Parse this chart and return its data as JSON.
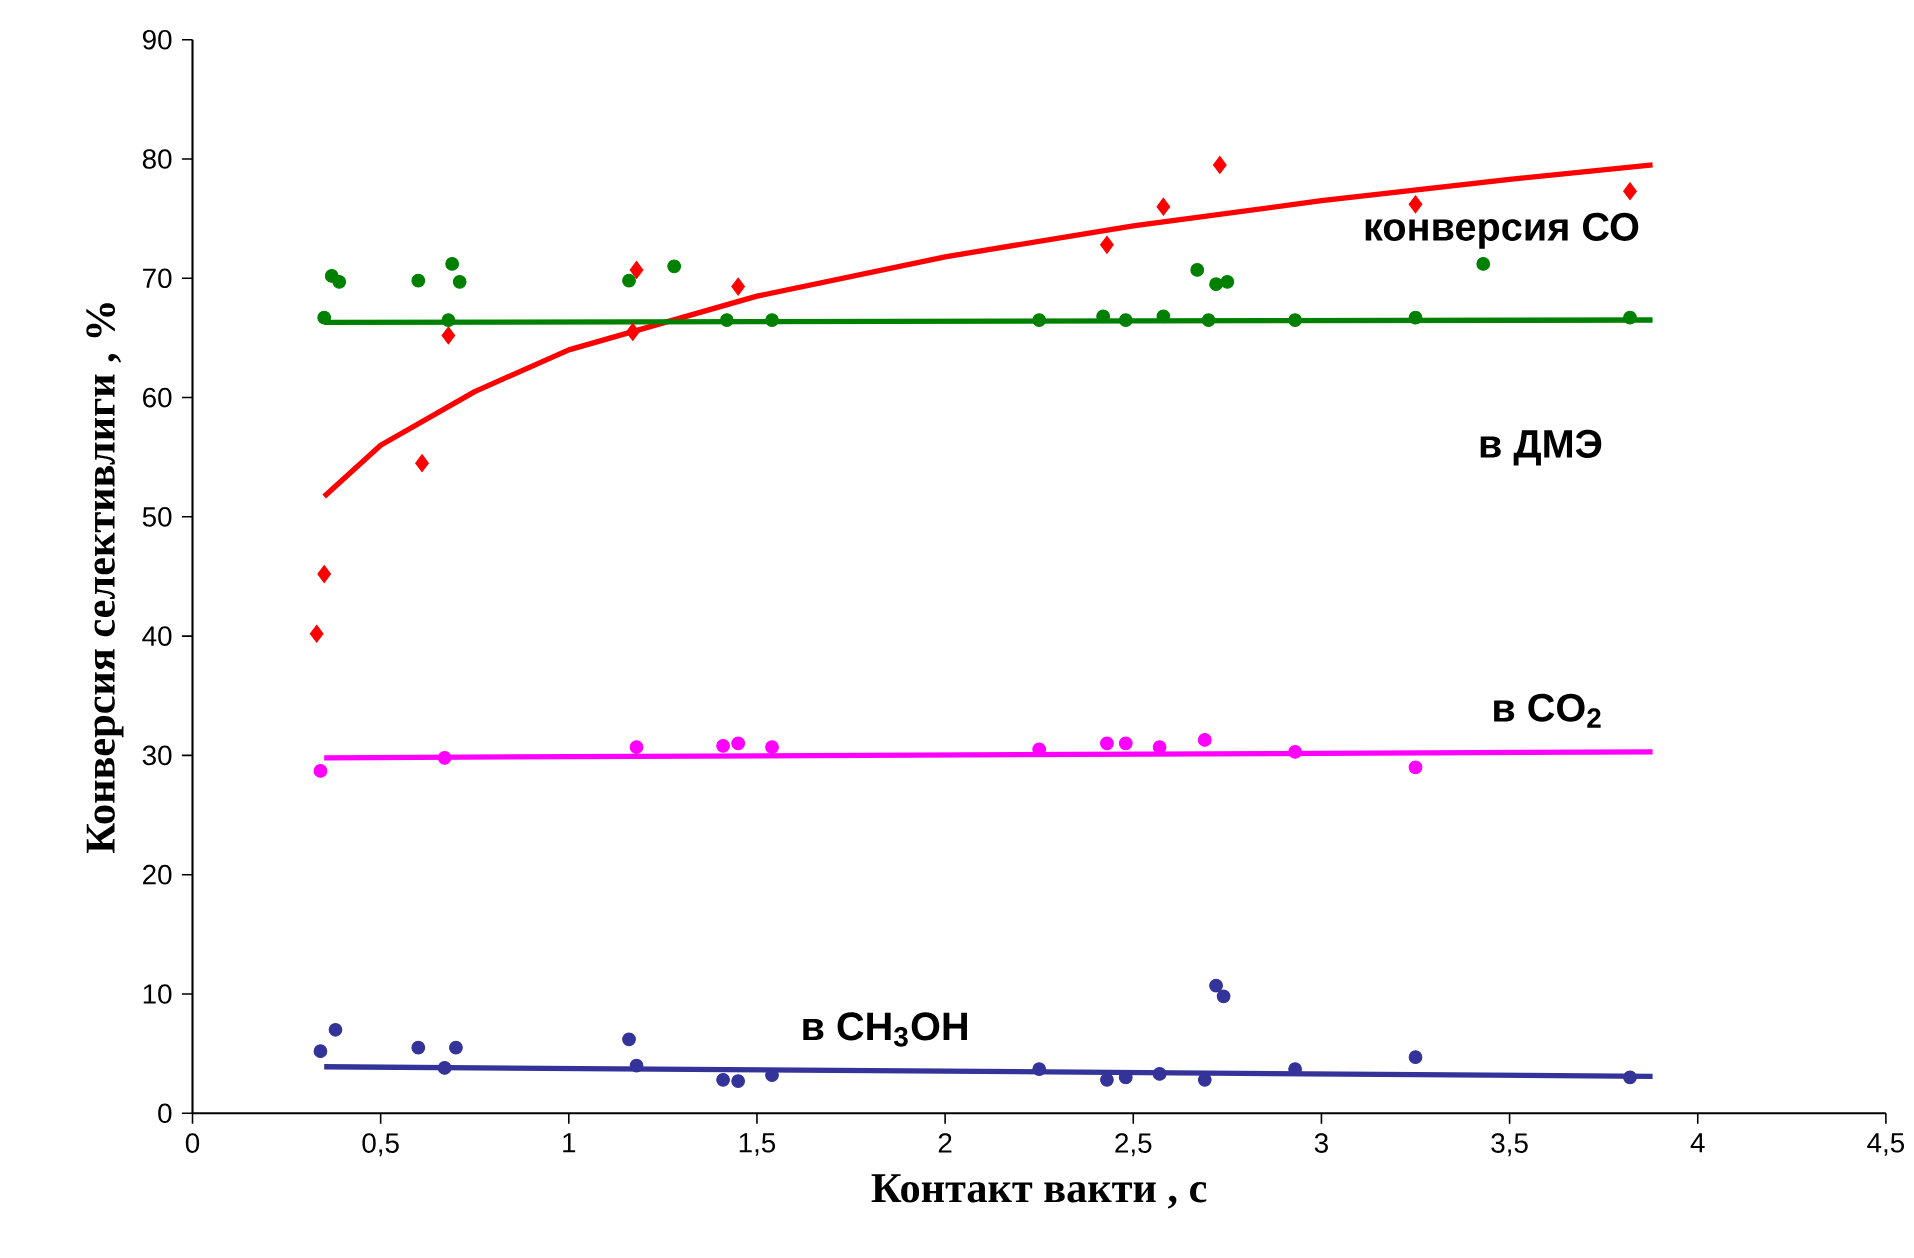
{
  "chart_data": {
    "type": "scatter",
    "xlabel": "Контакт  вакти , с",
    "ylabel": "Конверсия селективлиги , %",
    "xlim": [
      0,
      4.5
    ],
    "ylim": [
      0,
      90
    ],
    "xticks": [
      0,
      {
        "value": 0.5,
        "label": "0,5"
      },
      1,
      {
        "value": 1.5,
        "label": "1,5"
      },
      2,
      {
        "value": 2.5,
        "label": "2,5"
      },
      3,
      {
        "value": 3.5,
        "label": "3,5"
      },
      4,
      {
        "value": 4.5,
        "label": "4,5"
      }
    ],
    "yticks": [
      0,
      10,
      20,
      30,
      40,
      50,
      60,
      70,
      80,
      90
    ],
    "series": [
      {
        "color": "#ff0000",
        "marker": "diamond",
        "x": [
          0.33,
          0.35,
          0.61,
          0.68,
          1.17,
          1.18,
          1.45,
          2.43,
          2.58,
          2.73,
          3.25,
          3.82
        ],
        "values": [
          40.2,
          45.2,
          54.5,
          65.2,
          65.5,
          70.7,
          69.3,
          72.8,
          76.0,
          79.5,
          76.2,
          77.3
        ]
      },
      {
        "type": "line",
        "color": "#ff0000",
        "marker": "none",
        "x": [
          0.35,
          0.5,
          0.75,
          1.0,
          1.5,
          2.0,
          2.5,
          3.0,
          3.5,
          3.88
        ],
        "values": [
          51.7,
          56.0,
          60.5,
          64.0,
          68.5,
          71.8,
          74.4,
          76.5,
          78.3,
          79.5
        ]
      },
      {
        "color": "#008000",
        "marker": "circle",
        "x": [
          0.35,
          0.37,
          0.39,
          0.6,
          0.68,
          0.69,
          0.71,
          1.16,
          1.28,
          1.42,
          1.54,
          2.25,
          2.42,
          2.48,
          2.58,
          2.67,
          2.7,
          2.72,
          2.75,
          2.93,
          3.25,
          3.43,
          3.82
        ],
        "values": [
          66.7,
          70.2,
          69.7,
          69.8,
          66.5,
          71.2,
          69.7,
          69.8,
          71.0,
          66.5,
          66.5,
          66.5,
          66.8,
          66.5,
          66.8,
          70.7,
          66.5,
          69.5,
          69.7,
          66.5,
          66.7,
          71.2,
          66.7
        ]
      },
      {
        "type": "line",
        "color": "#008000",
        "marker": "none",
        "x": [
          0.35,
          3.88
        ],
        "values": [
          66.3,
          66.5
        ]
      },
      {
        "color": "#ff00ff",
        "marker": "circle",
        "x": [
          0.34,
          0.67,
          1.18,
          1.41,
          1.45,
          1.54,
          2.25,
          2.43,
          2.48,
          2.57,
          2.69,
          2.93,
          3.25
        ],
        "values": [
          28.7,
          29.8,
          30.7,
          30.8,
          31.0,
          30.7,
          30.5,
          31.0,
          31.0,
          30.7,
          31.3,
          30.3,
          29.0
        ]
      },
      {
        "type": "line",
        "color": "#ff00ff",
        "marker": "none",
        "x": [
          0.35,
          3.88
        ],
        "values": [
          29.8,
          30.3
        ]
      },
      {
        "color": "#333399",
        "marker": "circle",
        "x": [
          0.34,
          0.38,
          0.6,
          0.67,
          0.7,
          1.16,
          1.18,
          1.41,
          1.45,
          1.54,
          2.25,
          2.43,
          2.48,
          2.57,
          2.69,
          2.72,
          2.74,
          2.93,
          3.25,
          3.82
        ],
        "values": [
          5.2,
          7.0,
          5.5,
          3.8,
          5.5,
          6.2,
          4.0,
          2.8,
          2.7,
          3.2,
          3.7,
          2.8,
          3.0,
          3.3,
          2.8,
          10.7,
          9.8,
          3.7,
          4.7,
          3.0
        ]
      },
      {
        "type": "line",
        "color": "#333399",
        "marker": "none",
        "x": [
          0.35,
          3.88
        ],
        "values": [
          3.9,
          3.1
        ]
      }
    ],
    "annotations": [
      "конверсия СО",
      "в ДМЭ",
      "в CO$_{2}$",
      "в CH$_{3}$OH"
    ]
  }
}
